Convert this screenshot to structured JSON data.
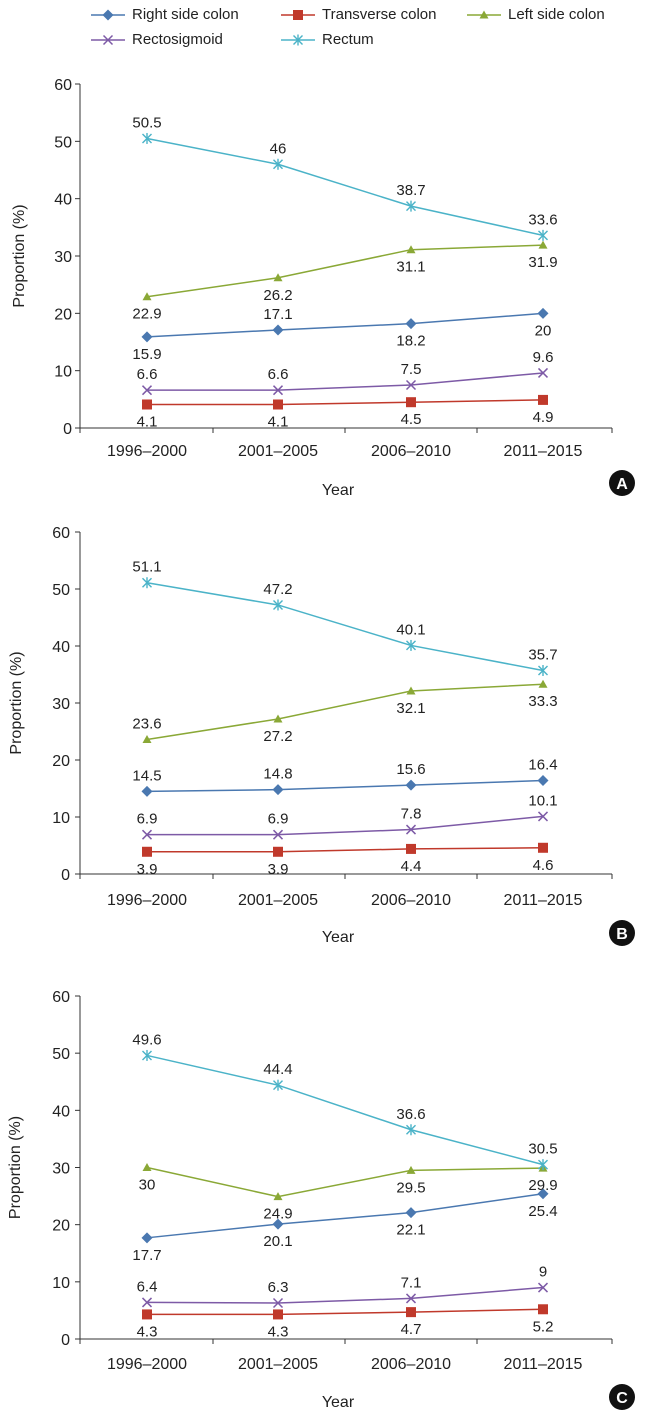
{
  "legend": [
    {
      "name": "Right side colon",
      "color": "#4a78b0",
      "marker": "diamond"
    },
    {
      "name": "Transverse colon",
      "color": "#c0392b",
      "marker": "square"
    },
    {
      "name": "Left side colon",
      "color": "#8aa836",
      "marker": "triangle"
    },
    {
      "name": "Rectosigmoid",
      "color": "#7d5aa6",
      "marker": "x"
    },
    {
      "name": "Rectum",
      "color": "#4bb3c8",
      "marker": "star"
    }
  ],
  "chart_data": [
    {
      "type": "line",
      "panel_label": "A",
      "categories": [
        "1996–2000",
        "2001–2005",
        "2006–2010",
        "2011–2015"
      ],
      "xlabel": "Year",
      "ylabel": "Proportion (%)",
      "ylim": [
        0,
        60
      ],
      "yticks": [
        0,
        10,
        20,
        30,
        40,
        50,
        60
      ],
      "series": [
        {
          "name": "Right side colon",
          "values": [
            15.9,
            17.1,
            18.2,
            20
          ],
          "labels": [
            "15.9",
            "17.1",
            "18.2",
            "20"
          ],
          "label_pos": [
            "below",
            "above",
            "below",
            "below"
          ]
        },
        {
          "name": "Transverse colon",
          "values": [
            4.1,
            4.1,
            4.5,
            4.9
          ],
          "labels": [
            "4.1",
            "4.1",
            "4.5",
            "4.9"
          ],
          "label_pos": [
            "below",
            "below",
            "below",
            "below"
          ]
        },
        {
          "name": "Left side colon",
          "values": [
            22.9,
            26.2,
            31.1,
            31.9
          ],
          "labels": [
            "22.9",
            "26.2",
            "31.1",
            "31.9"
          ],
          "label_pos": [
            "below",
            "below",
            "below",
            "below"
          ]
        },
        {
          "name": "Rectosigmoid",
          "values": [
            6.6,
            6.6,
            7.5,
            9.6
          ],
          "labels": [
            "6.6",
            "6.6",
            "7.5",
            "9.6"
          ],
          "label_pos": [
            "above",
            "above",
            "above",
            "above"
          ]
        },
        {
          "name": "Rectum",
          "values": [
            50.5,
            46,
            38.7,
            33.6
          ],
          "labels": [
            "50.5",
            "46",
            "38.7",
            "33.6"
          ],
          "label_pos": [
            "above",
            "above",
            "above",
            "above"
          ]
        }
      ]
    },
    {
      "type": "line",
      "panel_label": "B",
      "categories": [
        "1996–2000",
        "2001–2005",
        "2006–2010",
        "2011–2015"
      ],
      "xlabel": "Year",
      "ylabel": "Proportion (%)",
      "ylim": [
        0,
        60
      ],
      "yticks": [
        0,
        10,
        20,
        30,
        40,
        50,
        60
      ],
      "series": [
        {
          "name": "Right side colon",
          "values": [
            14.5,
            14.8,
            15.6,
            16.4
          ],
          "labels": [
            "14.5",
            "14.8",
            "15.6",
            "16.4"
          ],
          "label_pos": [
            "above",
            "above",
            "above",
            "above"
          ]
        },
        {
          "name": "Transverse colon",
          "values": [
            3.9,
            3.9,
            4.4,
            4.6
          ],
          "labels": [
            "3.9",
            "3.9",
            "4.4",
            "4.6"
          ],
          "label_pos": [
            "below",
            "below",
            "below",
            "below"
          ]
        },
        {
          "name": "Left side colon",
          "values": [
            23.6,
            27.2,
            32.1,
            33.3
          ],
          "labels": [
            "23.6",
            "27.2",
            "32.1",
            "33.3"
          ],
          "label_pos": [
            "above",
            "below",
            "below",
            "below"
          ]
        },
        {
          "name": "Rectosigmoid",
          "values": [
            6.9,
            6.9,
            7.8,
            10.1
          ],
          "labels": [
            "6.9",
            "6.9",
            "7.8",
            "10.1"
          ],
          "label_pos": [
            "above",
            "above",
            "above",
            "above"
          ]
        },
        {
          "name": "Rectum",
          "values": [
            51.1,
            47.2,
            40.1,
            35.7
          ],
          "labels": [
            "51.1",
            "47.2",
            "40.1",
            "35.7"
          ],
          "label_pos": [
            "above",
            "above",
            "above",
            "above"
          ]
        }
      ]
    },
    {
      "type": "line",
      "panel_label": "C",
      "categories": [
        "1996–2000",
        "2001–2005",
        "2006–2010",
        "2011–2015"
      ],
      "xlabel": "Year",
      "ylabel": "Proportion (%)",
      "ylim": [
        0,
        60
      ],
      "yticks": [
        0,
        10,
        20,
        30,
        40,
        50,
        60
      ],
      "series": [
        {
          "name": "Right side colon",
          "values": [
            17.7,
            20.1,
            22.1,
            25.4
          ],
          "labels": [
            "17.7",
            "20.1",
            "22.1",
            "25.4"
          ],
          "label_pos": [
            "below",
            "below",
            "below",
            "below"
          ]
        },
        {
          "name": "Transverse colon",
          "values": [
            4.3,
            4.3,
            4.7,
            5.2
          ],
          "labels": [
            "4.3",
            "4.3",
            "4.7",
            "5.2"
          ],
          "label_pos": [
            "below",
            "below",
            "below",
            "below"
          ]
        },
        {
          "name": "Left side colon",
          "values": [
            30,
            24.9,
            29.5,
            29.9
          ],
          "labels": [
            "30",
            "24.9",
            "29.5",
            "29.9"
          ],
          "label_pos": [
            "below",
            "below",
            "below",
            "below"
          ]
        },
        {
          "name": "Rectosigmoid",
          "values": [
            6.4,
            6.3,
            7.1,
            9
          ],
          "labels": [
            "6.4",
            "6.3",
            "7.1",
            "9"
          ],
          "label_pos": [
            "above",
            "above",
            "above",
            "above"
          ]
        },
        {
          "name": "Rectum",
          "values": [
            49.6,
            44.4,
            36.6,
            30.5
          ],
          "labels": [
            "49.6",
            "44.4",
            "36.6",
            "30.5"
          ],
          "label_pos": [
            "above",
            "above",
            "above",
            "above"
          ]
        }
      ]
    }
  ]
}
